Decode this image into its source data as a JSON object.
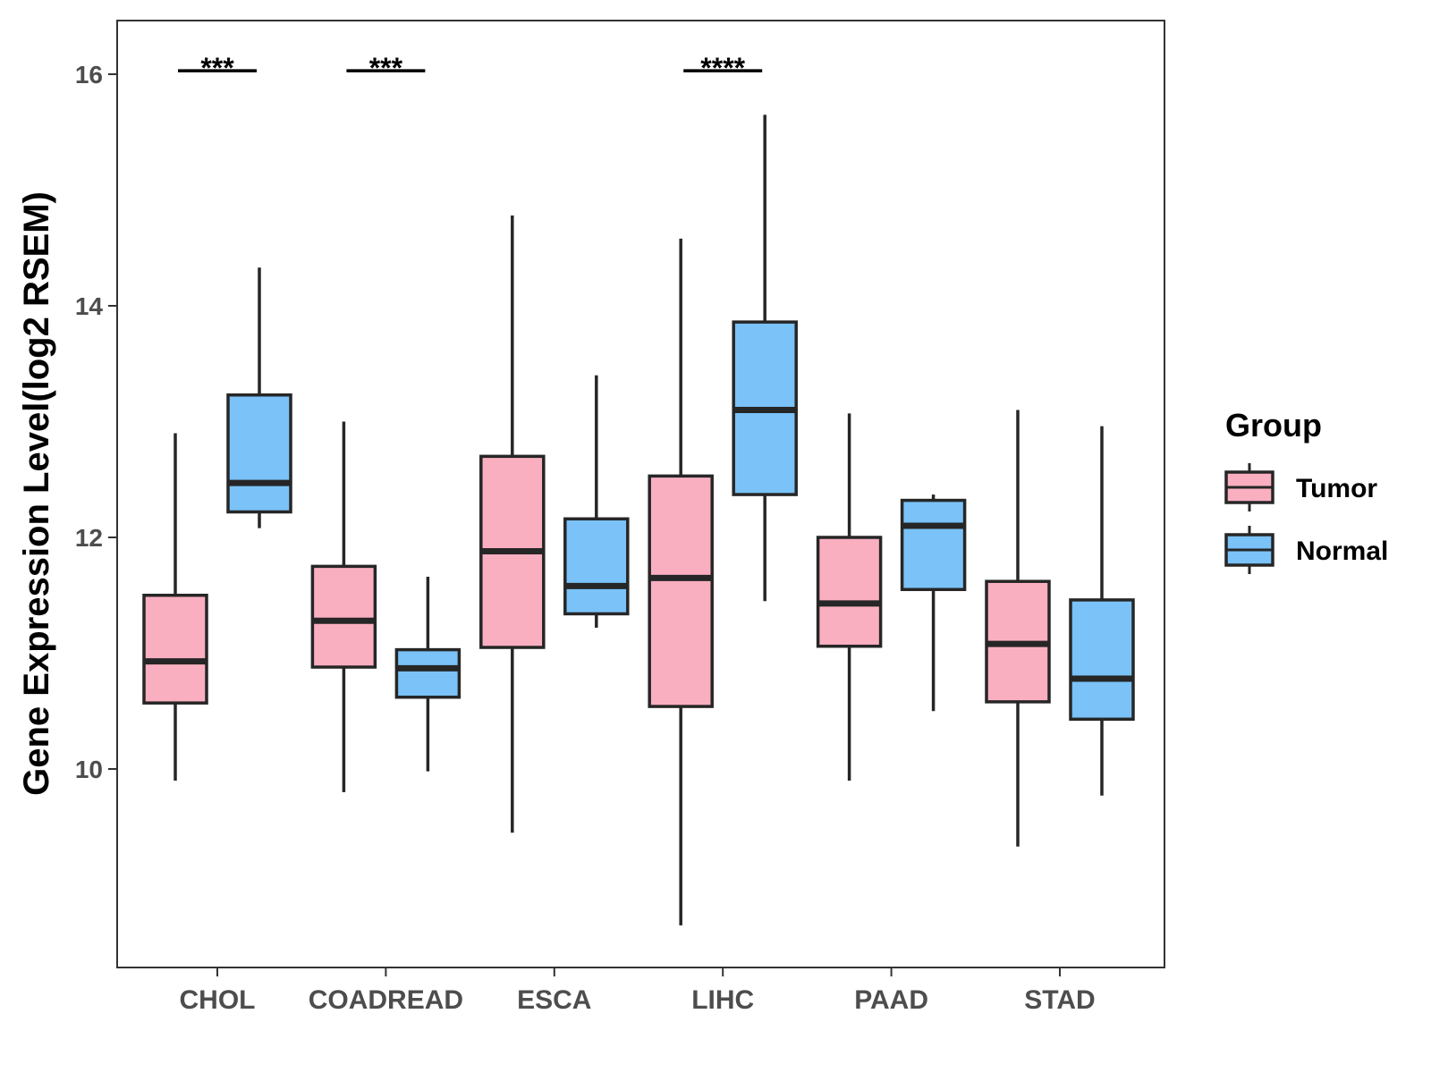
{
  "chart_data": {
    "type": "boxplot",
    "title": "",
    "xlabel": "",
    "ylabel": "Gene Expression Level(log2 RSEM)",
    "ylim": [
      8.3,
      16.45
    ],
    "yticks": [
      10,
      12,
      14,
      16
    ],
    "categories": [
      "CHOL",
      "COADREAD",
      "ESCA",
      "LIHC",
      "PAAD",
      "STAD"
    ],
    "legend": {
      "title": "Group",
      "position": "right"
    },
    "series": [
      {
        "name": "Tumor",
        "color": "#FAAFC1",
        "boxes": [
          {
            "min": 9.9,
            "q1": 10.57,
            "median": 10.93,
            "q3": 11.5,
            "max": 12.9
          },
          {
            "min": 9.8,
            "q1": 10.88,
            "median": 11.28,
            "q3": 11.75,
            "max": 13.0
          },
          {
            "min": 9.45,
            "q1": 11.05,
            "median": 11.88,
            "q3": 12.7,
            "max": 14.78
          },
          {
            "min": 8.65,
            "q1": 10.54,
            "median": 11.65,
            "q3": 12.53,
            "max": 14.58
          },
          {
            "min": 9.9,
            "q1": 11.06,
            "median": 11.43,
            "q3": 12.0,
            "max": 13.07
          },
          {
            "min": 9.33,
            "q1": 10.58,
            "median": 11.08,
            "q3": 11.62,
            "max": 13.1
          }
        ]
      },
      {
        "name": "Normal",
        "color": "#7AC2F8",
        "boxes": [
          {
            "min": 12.08,
            "q1": 12.22,
            "median": 12.47,
            "q3": 13.23,
            "max": 14.33
          },
          {
            "min": 9.98,
            "q1": 10.62,
            "median": 10.87,
            "q3": 11.03,
            "max": 11.66
          },
          {
            "min": 11.22,
            "q1": 11.34,
            "median": 11.58,
            "q3": 12.16,
            "max": 13.4
          },
          {
            "min": 11.45,
            "q1": 12.37,
            "median": 13.1,
            "q3": 13.86,
            "max": 15.65
          },
          {
            "min": 10.5,
            "q1": 11.55,
            "median": 12.1,
            "q3": 12.32,
            "max": 12.37
          },
          {
            "min": 9.77,
            "q1": 10.43,
            "median": 10.78,
            "q3": 11.46,
            "max": 12.96
          }
        ]
      }
    ],
    "annotations": [
      {
        "category": "CHOL",
        "text": "***",
        "y": 16.03
      },
      {
        "category": "COADREAD",
        "text": "***",
        "y": 16.03
      },
      {
        "category": "LIHC",
        "text": "****",
        "y": 16.03
      }
    ]
  }
}
